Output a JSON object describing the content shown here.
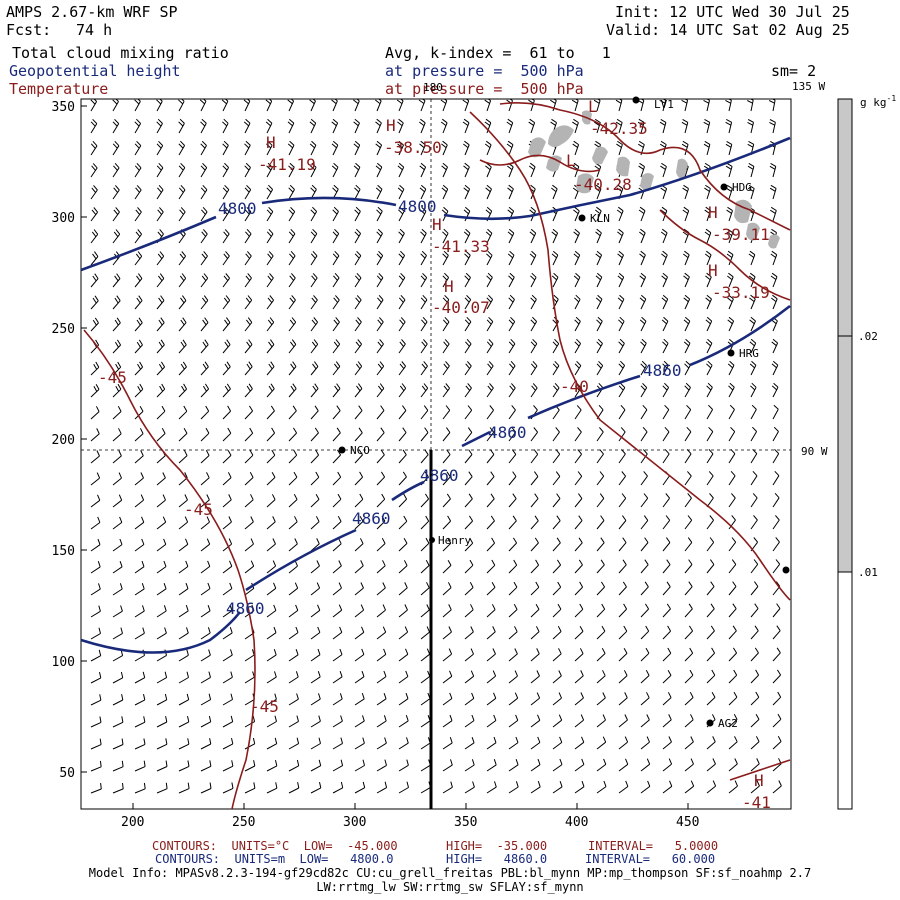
{
  "header": {
    "model": "AMPS 2.67-km WRF SP",
    "forecast_label": "Fcst:",
    "forecast_hours": "74 h",
    "init": "Init: 12 UTC Wed 30 Jul 25",
    "valid": "Valid: 14 UTC Sat 02 Aug 25",
    "field_cloud": "Total cloud mixing ratio",
    "field_height": "Geopotential height",
    "field_temp": "Temperature",
    "avg_k": "Avg, k-index =  61 to   1",
    "pressure_height": "at pressure =  500 hPa",
    "pressure_temp": "at pressure =  500 hPa",
    "smoothing": "sm= 2"
  },
  "map": {
    "x_ticks": [
      "200",
      "250",
      "300",
      "350",
      "400",
      "450"
    ],
    "y_ticks": [
      "350",
      "300",
      "250",
      "200",
      "150",
      "100",
      "50"
    ],
    "meridian_top_label": "180",
    "meridian_135": "135 W",
    "meridian_90": "90 W",
    "stations": {
      "lv1": "LV1",
      "kln": "KLN",
      "hdg": "HDG",
      "hrg": "HRG",
      "nco": "NCO",
      "henry": "Henry",
      "ag2": "AG2"
    },
    "height_labels": {
      "h4800_left": "4800",
      "h4800_mid": "4800",
      "h4860_a": "4860",
      "h4860_b": "4860",
      "h4860_c": "4860",
      "h4860_d": "4860",
      "h4860_e": "4860"
    },
    "temp_labels": {
      "t_m45_a": "-45",
      "t_m45_b": "-45",
      "t_m45_c": "-45",
      "t_m40": "-40",
      "t_4119": "-41.19",
      "t_3850": "-38.50",
      "t_4133": "-41.33",
      "t_4007": "-40.07",
      "t_4235": "-42.35",
      "t_4028": "-40.28",
      "t_3911": "-39.11",
      "t_3319": "-33.19",
      "t_m41": "-41"
    },
    "hl": {
      "h1": "H",
      "h2": "H",
      "h3": "H",
      "h4": "H",
      "h5": "H",
      "h6": "H",
      "h7": "H",
      "l1": "L",
      "l2": "L"
    }
  },
  "colorbar": {
    "unit_label": "g kg",
    "unit_exponent": "-1",
    "ticks": [
      ".02",
      ".01"
    ]
  },
  "footer": {
    "red_contours": "CONTOURS:  UNITS=°C  LOW=  -45.000",
    "red_high": "HIGH=  -35.000",
    "red_interval": "INTERVAL=   5.0000",
    "blue_contours": "CONTOURS:  UNITS=m  LOW=   4800.0",
    "blue_high": "HIGH=   4860.0",
    "blue_interval": "INTERVAL=   60.000",
    "model_info": "Model Info: MPASv8.2.3-194-gf29cd82c CU:cu_grell_freitas PBL:bl_mynn MP:mp_thompson SF:sf_noahmp 2.7",
    "model_info2": "LW:rrtmg_lw SW:rrtmg_sw SFLAY:sf_mynn"
  },
  "colors": {
    "height_contour": "#1a2a7a",
    "temp_contour": "#8a1c1c",
    "cloud_shading": "#b4b4b4",
    "colorbar_fill": "#c8c8c8"
  }
}
